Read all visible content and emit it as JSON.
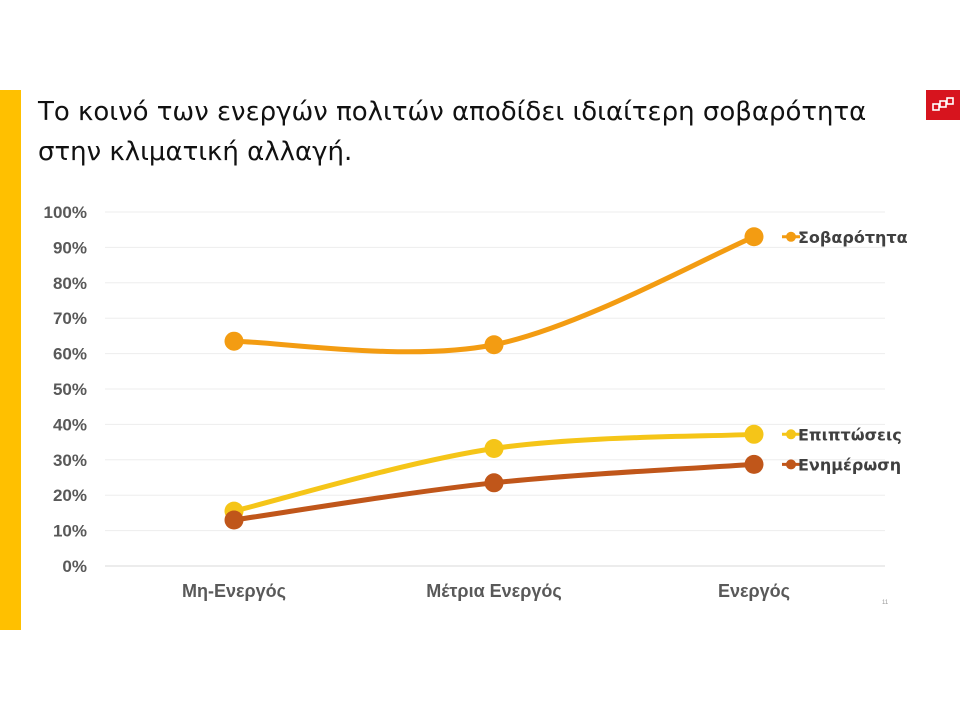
{
  "slide": {
    "title": "Το κοινό των ενεργών πολιτών αποδίδει ιδιαίτερη σοβαρότητα στην κλιματική αλλαγή.",
    "page_number": "11",
    "accent_color": "#FFC000",
    "logo_color": "#D7141E"
  },
  "chart_data": {
    "type": "line",
    "title": "",
    "xlabel": "",
    "ylabel": "",
    "categories": [
      "Μη-Ενεργός",
      "Μέτρια Ενεργός",
      "Ενεργός"
    ],
    "ylim": [
      0,
      100
    ],
    "yticks": [
      0,
      10,
      20,
      30,
      40,
      50,
      60,
      70,
      80,
      90,
      100
    ],
    "ytick_labels": [
      "0%",
      "10%",
      "20%",
      "30%",
      "40%",
      "50%",
      "60%",
      "70%",
      "80%",
      "90%",
      "100%"
    ],
    "grid": true,
    "legend": "right, next to line ends",
    "series": [
      {
        "name": "Σοβαρότητα",
        "values": [
          63.5,
          62.5,
          93
        ],
        "color": "#F39C12"
      },
      {
        "name": "Επιπτώσεις",
        "values": [
          15.5,
          33.2,
          37.2
        ],
        "color": "#F5C518"
      },
      {
        "name": "Ενημέρωση",
        "values": [
          13,
          23.5,
          28.7
        ],
        "color": "#C0561A"
      }
    ]
  }
}
